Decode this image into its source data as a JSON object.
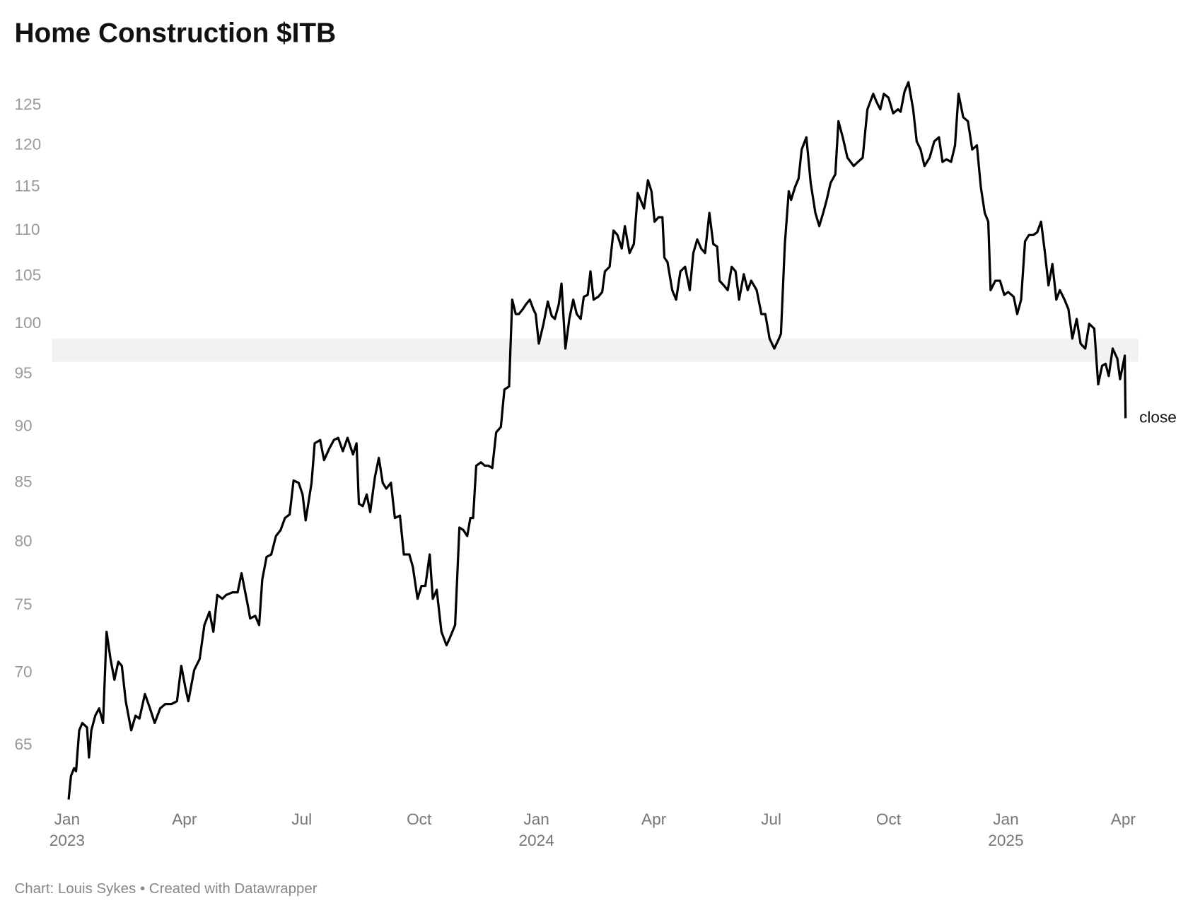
{
  "chart_data": {
    "type": "line",
    "title": "Home Construction $ITB",
    "footer": "Chart: Louis Sykes • Created with Datawrapper",
    "annotation": "close",
    "log_y": true,
    "grid": false,
    "band": [
      96.2,
      98.5
    ],
    "band_color": "#f2f2f2",
    "xlim": [
      -0.39,
      27.39
    ],
    "xticks": [
      {
        "value": 0,
        "label": "Jan 2023"
      },
      {
        "value": 3,
        "label": "Apr"
      },
      {
        "value": 6,
        "label": "Jul"
      },
      {
        "value": 9,
        "label": "Oct"
      },
      {
        "value": 12,
        "label": "Jan 2024"
      },
      {
        "value": 15,
        "label": "Apr"
      },
      {
        "value": 18,
        "label": "Jul"
      },
      {
        "value": 21,
        "label": "Oct"
      },
      {
        "value": 24,
        "label": "Jan 2025"
      },
      {
        "value": 27,
        "label": "Apr"
      }
    ],
    "ylim": [
      61,
      130
    ],
    "yticks": [
      65,
      70,
      75,
      80,
      85,
      90,
      95,
      100,
      105,
      110,
      115,
      120,
      125
    ],
    "x": [
      0.04,
      0.1,
      0.18,
      0.23,
      0.31,
      0.39,
      0.51,
      0.56,
      0.62,
      0.72,
      0.82,
      0.92,
      1.01,
      1.11,
      1.21,
      1.31,
      1.4,
      1.5,
      1.64,
      1.75,
      1.85,
      1.99,
      2.12,
      2.24,
      2.38,
      2.51,
      2.67,
      2.81,
      2.92,
      3.02,
      3.1,
      3.25,
      3.39,
      3.51,
      3.64,
      3.74,
      3.84,
      3.97,
      4.07,
      4.23,
      4.36,
      4.46,
      4.62,
      4.68,
      4.81,
      4.91,
      4.99,
      5.1,
      5.22,
      5.34,
      5.46,
      5.57,
      5.69,
      5.79,
      5.92,
      6.02,
      6.1,
      6.25,
      6.33,
      6.47,
      6.57,
      6.7,
      6.82,
      6.93,
      7.05,
      7.17,
      7.31,
      7.4,
      7.46,
      7.56,
      7.66,
      7.75,
      7.87,
      7.97,
      8.07,
      8.16,
      8.28,
      8.38,
      8.51,
      8.61,
      8.75,
      8.84,
      8.96,
      9.06,
      9.16,
      9.27,
      9.35,
      9.45,
      9.57,
      9.7,
      9.78,
      9.92,
      10.03,
      10.13,
      10.23,
      10.31,
      10.38,
      10.46,
      10.58,
      10.68,
      10.77,
      10.87,
      10.97,
      11.09,
      11.18,
      11.3,
      11.38,
      11.47,
      11.55,
      11.65,
      11.73,
      11.83,
      11.92,
      11.98,
      12.06,
      12.18,
      12.29,
      12.39,
      12.47,
      12.57,
      12.64,
      12.74,
      12.84,
      12.94,
      13.03,
      13.13,
      13.21,
      13.31,
      13.38,
      13.46,
      13.58,
      13.68,
      13.75,
      13.87,
      13.97,
      14.07,
      14.18,
      14.26,
      14.38,
      14.49,
      14.59,
      14.75,
      14.85,
      14.94,
      15.02,
      15.12,
      15.22,
      15.27,
      15.35,
      15.47,
      15.57,
      15.68,
      15.8,
      15.92,
      16.01,
      16.11,
      16.21,
      16.31,
      16.42,
      16.52,
      16.62,
      16.68,
      16.79,
      16.89,
      16.99,
      17.09,
      17.18,
      17.3,
      17.4,
      17.49,
      17.63,
      17.75,
      17.85,
      17.96,
      18.08,
      18.2,
      18.25,
      18.35,
      18.45,
      18.51,
      18.61,
      18.7,
      18.78,
      18.9,
      19.01,
      19.13,
      19.23,
      19.33,
      19.42,
      19.52,
      19.64,
      19.72,
      19.83,
      19.95,
      20.11,
      20.22,
      20.34,
      20.46,
      20.61,
      20.69,
      20.79,
      20.88,
      21.0,
      21.12,
      21.24,
      21.31,
      21.41,
      21.51,
      21.63,
      21.72,
      21.82,
      21.92,
      22.05,
      22.17,
      22.29,
      22.38,
      22.48,
      22.6,
      22.7,
      22.79,
      22.91,
      23.03,
      23.14,
      23.26,
      23.36,
      23.46,
      23.55,
      23.61,
      23.73,
      23.85,
      23.96,
      24.06,
      24.2,
      24.29,
      24.39,
      24.49,
      24.59,
      24.7,
      24.8,
      24.9,
      25.0,
      25.09,
      25.19,
      25.29,
      25.38,
      25.5,
      25.6,
      25.7,
      25.81,
      25.91,
      26.03,
      26.13,
      26.26,
      26.36,
      26.46,
      26.55,
      26.63,
      26.73,
      26.85,
      26.92,
      27.04,
      27.06
    ],
    "series": [
      {
        "name": "close",
        "color": "#000000",
        "values": [
          61.5,
          63,
          63.5,
          63.3,
          66,
          66.5,
          66.2,
          64.2,
          66,
          67,
          67.5,
          66.5,
          73,
          71,
          69.5,
          70.8,
          70.5,
          68,
          66,
          67,
          66.8,
          68.5,
          67.5,
          66.5,
          67.5,
          67.8,
          67.8,
          68,
          70.5,
          69,
          68,
          70.2,
          71,
          73.5,
          74.5,
          73,
          75.8,
          75.5,
          75.8,
          76,
          76,
          77.5,
          75,
          74,
          74.2,
          73.5,
          77,
          78.8,
          79,
          80.5,
          81,
          82,
          82.3,
          85.2,
          85,
          84,
          81.8,
          85,
          88.5,
          88.8,
          87,
          88,
          88.8,
          89,
          87.8,
          89,
          87.5,
          88.5,
          83.2,
          83,
          84,
          82.5,
          85.5,
          87.2,
          85,
          84.5,
          85,
          82,
          82.2,
          79,
          79,
          78,
          75.5,
          76.5,
          76.5,
          79,
          75.5,
          76.2,
          73,
          72,
          72.5,
          73.5,
          81.2,
          81,
          80.5,
          82,
          82,
          86.5,
          86.8,
          86.5,
          86.5,
          86.3,
          89.5,
          90,
          93.5,
          93.8,
          102.5,
          101,
          101,
          101.5,
          102,
          102.5,
          101.5,
          101,
          98,
          100,
          102.3,
          100.8,
          100.5,
          102,
          104.2,
          97.5,
          100.5,
          102.5,
          101,
          100.5,
          102.8,
          103,
          105.5,
          102.5,
          102.8,
          103.3,
          105.5,
          106,
          110,
          109.5,
          108,
          110.5,
          107.5,
          108.5,
          114.3,
          112.5,
          115.8,
          114.5,
          111,
          111.5,
          111.5,
          107,
          106.5,
          103.5,
          102.5,
          105.5,
          106,
          103.5,
          107.5,
          109,
          108,
          107.5,
          112,
          108.5,
          108.2,
          104.5,
          104,
          103.5,
          106,
          105.5,
          102.5,
          105.2,
          103.5,
          104.5,
          103.5,
          101,
          101,
          98.5,
          97.5,
          98.5,
          99,
          108.5,
          114.5,
          113.5,
          115,
          116,
          119.5,
          121,
          115.5,
          112,
          110.5,
          112,
          113.5,
          115.5,
          116.5,
          123,
          121,
          118.5,
          117.5,
          118,
          118.5,
          124.5,
          126.5,
          125.5,
          124.5,
          126.5,
          126,
          124,
          124.5,
          124.2,
          126.8,
          128,
          124.5,
          120.5,
          119.5,
          117.5,
          118.5,
          120.5,
          121,
          118,
          118.3,
          118,
          120,
          126.5,
          123.5,
          123,
          119.5,
          120,
          115,
          112,
          111,
          103.5,
          104.5,
          104.5,
          103,
          103.3,
          102.8,
          101,
          102.5,
          108.8,
          109.5,
          109.5,
          109.8,
          111,
          107.5,
          104,
          106.3,
          102.5,
          103.5,
          102.5,
          101.5,
          98.5,
          100.5,
          98,
          97.5,
          100,
          99.5,
          94,
          95.8,
          96,
          94.8,
          97.5,
          96.5,
          94.5,
          96.8,
          90.8
        ]
      }
    ]
  }
}
